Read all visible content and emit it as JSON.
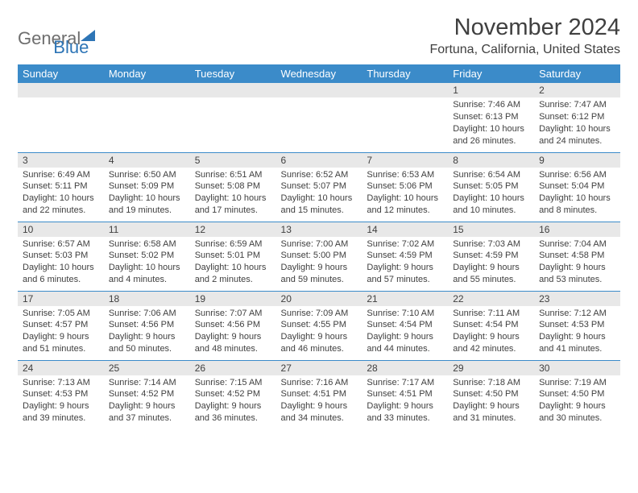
{
  "logo": {
    "text1": "General",
    "text2": "Blue"
  },
  "header": {
    "month_title": "November 2024",
    "location": "Fortuna, California, United States"
  },
  "colors": {
    "header_bg": "#3b8bc9",
    "header_fg": "#ffffff",
    "daynum_bg": "#e8e8e8",
    "text": "#404040",
    "border": "#3b8bc9",
    "logo_gray": "#6e6e6e",
    "logo_blue": "#2e75b6"
  },
  "weekdays": [
    "Sunday",
    "Monday",
    "Tuesday",
    "Wednesday",
    "Thursday",
    "Friday",
    "Saturday"
  ],
  "weeks": [
    [
      {
        "day": "",
        "sunrise": "",
        "sunset": "",
        "daylight": ""
      },
      {
        "day": "",
        "sunrise": "",
        "sunset": "",
        "daylight": ""
      },
      {
        "day": "",
        "sunrise": "",
        "sunset": "",
        "daylight": ""
      },
      {
        "day": "",
        "sunrise": "",
        "sunset": "",
        "daylight": ""
      },
      {
        "day": "",
        "sunrise": "",
        "sunset": "",
        "daylight": ""
      },
      {
        "day": "1",
        "sunrise": "Sunrise: 7:46 AM",
        "sunset": "Sunset: 6:13 PM",
        "daylight": "Daylight: 10 hours and 26 minutes."
      },
      {
        "day": "2",
        "sunrise": "Sunrise: 7:47 AM",
        "sunset": "Sunset: 6:12 PM",
        "daylight": "Daylight: 10 hours and 24 minutes."
      }
    ],
    [
      {
        "day": "3",
        "sunrise": "Sunrise: 6:49 AM",
        "sunset": "Sunset: 5:11 PM",
        "daylight": "Daylight: 10 hours and 22 minutes."
      },
      {
        "day": "4",
        "sunrise": "Sunrise: 6:50 AM",
        "sunset": "Sunset: 5:09 PM",
        "daylight": "Daylight: 10 hours and 19 minutes."
      },
      {
        "day": "5",
        "sunrise": "Sunrise: 6:51 AM",
        "sunset": "Sunset: 5:08 PM",
        "daylight": "Daylight: 10 hours and 17 minutes."
      },
      {
        "day": "6",
        "sunrise": "Sunrise: 6:52 AM",
        "sunset": "Sunset: 5:07 PM",
        "daylight": "Daylight: 10 hours and 15 minutes."
      },
      {
        "day": "7",
        "sunrise": "Sunrise: 6:53 AM",
        "sunset": "Sunset: 5:06 PM",
        "daylight": "Daylight: 10 hours and 12 minutes."
      },
      {
        "day": "8",
        "sunrise": "Sunrise: 6:54 AM",
        "sunset": "Sunset: 5:05 PM",
        "daylight": "Daylight: 10 hours and 10 minutes."
      },
      {
        "day": "9",
        "sunrise": "Sunrise: 6:56 AM",
        "sunset": "Sunset: 5:04 PM",
        "daylight": "Daylight: 10 hours and 8 minutes."
      }
    ],
    [
      {
        "day": "10",
        "sunrise": "Sunrise: 6:57 AM",
        "sunset": "Sunset: 5:03 PM",
        "daylight": "Daylight: 10 hours and 6 minutes."
      },
      {
        "day": "11",
        "sunrise": "Sunrise: 6:58 AM",
        "sunset": "Sunset: 5:02 PM",
        "daylight": "Daylight: 10 hours and 4 minutes."
      },
      {
        "day": "12",
        "sunrise": "Sunrise: 6:59 AM",
        "sunset": "Sunset: 5:01 PM",
        "daylight": "Daylight: 10 hours and 2 minutes."
      },
      {
        "day": "13",
        "sunrise": "Sunrise: 7:00 AM",
        "sunset": "Sunset: 5:00 PM",
        "daylight": "Daylight: 9 hours and 59 minutes."
      },
      {
        "day": "14",
        "sunrise": "Sunrise: 7:02 AM",
        "sunset": "Sunset: 4:59 PM",
        "daylight": "Daylight: 9 hours and 57 minutes."
      },
      {
        "day": "15",
        "sunrise": "Sunrise: 7:03 AM",
        "sunset": "Sunset: 4:59 PM",
        "daylight": "Daylight: 9 hours and 55 minutes."
      },
      {
        "day": "16",
        "sunrise": "Sunrise: 7:04 AM",
        "sunset": "Sunset: 4:58 PM",
        "daylight": "Daylight: 9 hours and 53 minutes."
      }
    ],
    [
      {
        "day": "17",
        "sunrise": "Sunrise: 7:05 AM",
        "sunset": "Sunset: 4:57 PM",
        "daylight": "Daylight: 9 hours and 51 minutes."
      },
      {
        "day": "18",
        "sunrise": "Sunrise: 7:06 AM",
        "sunset": "Sunset: 4:56 PM",
        "daylight": "Daylight: 9 hours and 50 minutes."
      },
      {
        "day": "19",
        "sunrise": "Sunrise: 7:07 AM",
        "sunset": "Sunset: 4:56 PM",
        "daylight": "Daylight: 9 hours and 48 minutes."
      },
      {
        "day": "20",
        "sunrise": "Sunrise: 7:09 AM",
        "sunset": "Sunset: 4:55 PM",
        "daylight": "Daylight: 9 hours and 46 minutes."
      },
      {
        "day": "21",
        "sunrise": "Sunrise: 7:10 AM",
        "sunset": "Sunset: 4:54 PM",
        "daylight": "Daylight: 9 hours and 44 minutes."
      },
      {
        "day": "22",
        "sunrise": "Sunrise: 7:11 AM",
        "sunset": "Sunset: 4:54 PM",
        "daylight": "Daylight: 9 hours and 42 minutes."
      },
      {
        "day": "23",
        "sunrise": "Sunrise: 7:12 AM",
        "sunset": "Sunset: 4:53 PM",
        "daylight": "Daylight: 9 hours and 41 minutes."
      }
    ],
    [
      {
        "day": "24",
        "sunrise": "Sunrise: 7:13 AM",
        "sunset": "Sunset: 4:53 PM",
        "daylight": "Daylight: 9 hours and 39 minutes."
      },
      {
        "day": "25",
        "sunrise": "Sunrise: 7:14 AM",
        "sunset": "Sunset: 4:52 PM",
        "daylight": "Daylight: 9 hours and 37 minutes."
      },
      {
        "day": "26",
        "sunrise": "Sunrise: 7:15 AM",
        "sunset": "Sunset: 4:52 PM",
        "daylight": "Daylight: 9 hours and 36 minutes."
      },
      {
        "day": "27",
        "sunrise": "Sunrise: 7:16 AM",
        "sunset": "Sunset: 4:51 PM",
        "daylight": "Daylight: 9 hours and 34 minutes."
      },
      {
        "day": "28",
        "sunrise": "Sunrise: 7:17 AM",
        "sunset": "Sunset: 4:51 PM",
        "daylight": "Daylight: 9 hours and 33 minutes."
      },
      {
        "day": "29",
        "sunrise": "Sunrise: 7:18 AM",
        "sunset": "Sunset: 4:50 PM",
        "daylight": "Daylight: 9 hours and 31 minutes."
      },
      {
        "day": "30",
        "sunrise": "Sunrise: 7:19 AM",
        "sunset": "Sunset: 4:50 PM",
        "daylight": "Daylight: 9 hours and 30 minutes."
      }
    ]
  ]
}
